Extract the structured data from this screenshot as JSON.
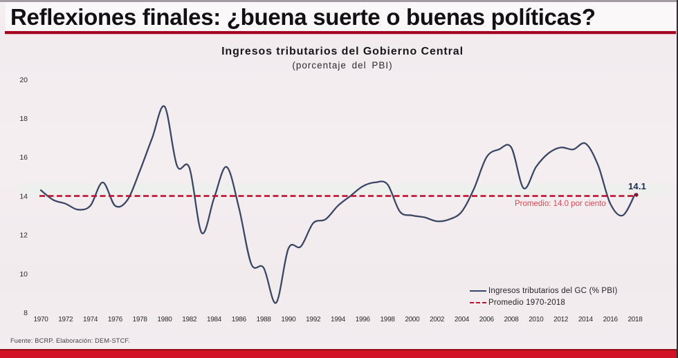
{
  "slide": {
    "title": "Reflexiones finales: ¿buena suerte o buenas políticas?",
    "footer": "Fuente: BCRP. Elaboración: DEM-STCF."
  },
  "chart": {
    "title": "Ingresos tributarios del Gobierno Central",
    "subtitle": "(porcentaje del PBI)",
    "annotation": "Promedio: 14.0 por ciento",
    "end_label": "14.1",
    "legend": [
      {
        "label": "Ingresos tributarios del GC (% PBI)",
        "style": "solid-line"
      },
      {
        "label": "Promedio 1970-2018",
        "style": "dashed-line"
      }
    ],
    "colors": {
      "series_line": "#3a4663",
      "average_line": "#c01030",
      "annotation_text": "#d44a56",
      "end_label_text": "#1c2b4b",
      "bottom_bar": "#d01425",
      "title_rule": "#a2011f"
    }
  },
  "chart_data": {
    "type": "line",
    "title": "Ingresos tributarios del Gobierno Central",
    "subtitle": "(porcentaje del PBI)",
    "xlabel": "",
    "ylabel": "",
    "xlim": [
      1970,
      2018
    ],
    "ylim": [
      8,
      20
    ],
    "grid": false,
    "legend_position": "bottom-right",
    "xticks": [
      1970,
      1972,
      1974,
      1976,
      1978,
      1980,
      1982,
      1984,
      1986,
      1988,
      1990,
      1992,
      1994,
      1996,
      1998,
      2000,
      2002,
      2004,
      2006,
      2008,
      2010,
      2012,
      2014,
      2016,
      2018
    ],
    "yticks": [
      8,
      10,
      12,
      14,
      16,
      18,
      20
    ],
    "x": [
      1970,
      1971,
      1972,
      1973,
      1974,
      1975,
      1976,
      1977,
      1978,
      1979,
      1980,
      1981,
      1982,
      1983,
      1984,
      1985,
      1986,
      1987,
      1988,
      1989,
      1990,
      1991,
      1992,
      1993,
      1994,
      1995,
      1996,
      1997,
      1998,
      1999,
      2000,
      2001,
      2002,
      2003,
      2004,
      2005,
      2006,
      2007,
      2008,
      2009,
      2010,
      2011,
      2012,
      2013,
      2014,
      2015,
      2016,
      2017,
      2018
    ],
    "series": [
      {
        "name": "Ingresos tributarios del GC (% PBI)",
        "values": [
          14.3,
          13.8,
          13.6,
          13.3,
          13.5,
          14.7,
          13.5,
          13.8,
          15.3,
          17.0,
          18.6,
          15.55,
          15.45,
          12.1,
          13.9,
          15.5,
          13.4,
          10.5,
          10.3,
          8.5,
          11.3,
          11.4,
          12.6,
          12.8,
          13.5,
          14.0,
          14.5,
          14.7,
          14.6,
          13.2,
          13.0,
          12.9,
          12.7,
          12.8,
          13.2,
          14.4,
          16.0,
          16.4,
          16.5,
          14.4,
          15.5,
          16.2,
          16.5,
          16.4,
          16.7,
          15.6,
          13.6,
          13.0,
          14.1
        ]
      }
    ],
    "average_line": {
      "label": "Promedio 1970-2018",
      "value": 14.0
    },
    "end_point_label": {
      "x": 2018,
      "value": 14.1,
      "text": "14.1"
    }
  }
}
